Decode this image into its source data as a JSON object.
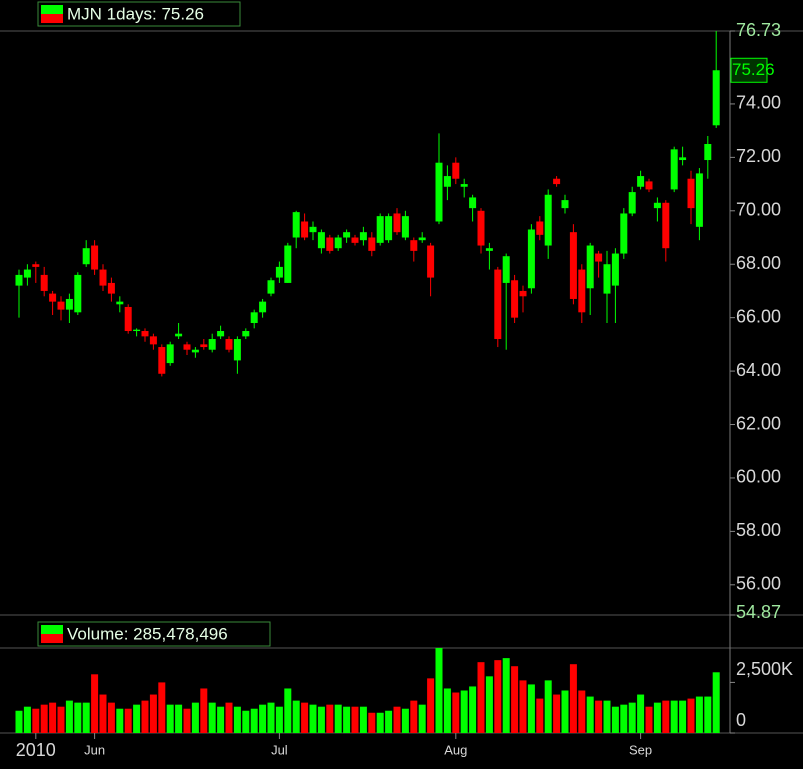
{
  "chart_data": [
    {
      "type": "candlestick",
      "title": "MJN 1days: 75.26",
      "last_price": 75.26,
      "up_color": "#00ff00",
      "down_color": "#ff0000",
      "categories": [
        null,
        null,
        "2010",
        null,
        null,
        null,
        null,
        null,
        null,
        "Jun",
        null,
        null,
        null,
        null,
        null,
        null,
        null,
        null,
        null,
        null,
        null,
        null,
        null,
        null,
        null,
        null,
        null,
        null,
        null,
        null,
        null,
        "Jul",
        null,
        null,
        null,
        null,
        null,
        null,
        null,
        null,
        null,
        null,
        null,
        null,
        null,
        null,
        null,
        null,
        null,
        null,
        null,
        null,
        "Aug",
        null,
        null,
        null,
        null,
        null,
        null,
        null,
        null,
        null,
        null,
        null,
        null,
        null,
        null,
        null,
        null,
        null,
        null,
        null,
        null,
        null,
        "Sep",
        null,
        null,
        null,
        null,
        null,
        null,
        null,
        null,
        null
      ],
      "open": [
        67.2,
        67.5,
        68.0,
        67.6,
        66.9,
        66.6,
        66.3,
        66.2,
        68.0,
        68.7,
        67.8,
        67.3,
        66.5,
        66.4,
        65.5,
        65.5,
        65.3,
        64.9,
        64.3,
        65.3,
        65.0,
        64.7,
        65.0,
        64.8,
        65.3,
        65.2,
        64.4,
        65.3,
        65.8,
        66.2,
        66.9,
        67.5,
        67.3,
        69.0,
        69.6,
        69.2,
        68.6,
        69.0,
        68.6,
        69.0,
        69.0,
        68.9,
        69.0,
        68.8,
        68.9,
        69.9,
        69.0,
        68.9,
        68.9,
        68.7,
        69.6,
        70.9,
        71.8,
        70.9,
        70.1,
        70.0,
        68.5,
        67.8,
        67.3,
        67.4,
        67.0,
        67.1,
        69.6,
        68.7,
        71.2,
        70.1,
        69.2,
        67.8,
        67.1,
        68.4,
        66.9,
        67.2,
        68.4,
        69.9,
        70.9,
        71.1,
        70.1,
        70.3,
        70.8,
        71.9,
        71.2,
        69.4,
        71.9,
        73.2
      ],
      "high": [
        67.8,
        68.0,
        68.1,
        67.9,
        67.0,
        66.8,
        66.9,
        67.7,
        68.9,
        68.9,
        68.0,
        67.5,
        66.8,
        66.5,
        65.6,
        65.6,
        65.4,
        65.0,
        65.1,
        65.8,
        65.1,
        64.9,
        65.2,
        65.4,
        65.7,
        65.3,
        65.3,
        65.6,
        66.3,
        66.7,
        67.5,
        68.1,
        68.8,
        70.0,
        69.9,
        69.6,
        69.3,
        69.1,
        69.1,
        69.3,
        69.1,
        69.4,
        69.2,
        69.9,
        69.9,
        70.1,
        70.0,
        69.0,
        69.2,
        68.8,
        72.9,
        71.7,
        72.0,
        71.2,
        70.6,
        70.1,
        68.8,
        67.9,
        68.4,
        67.6,
        67.2,
        69.5,
        69.8,
        70.8,
        71.3,
        70.6,
        69.5,
        68.0,
        68.8,
        68.5,
        68.5,
        68.6,
        70.1,
        70.9,
        71.5,
        71.2,
        70.5,
        70.4,
        72.4,
        72.4,
        71.5,
        71.6,
        72.8,
        76.73
      ],
      "low": [
        66.0,
        67.2,
        67.3,
        66.8,
        66.1,
        65.9,
        65.8,
        66.1,
        67.9,
        67.6,
        67.0,
        66.6,
        66.2,
        65.4,
        65.3,
        65.1,
        64.8,
        63.8,
        64.2,
        65.2,
        64.6,
        64.5,
        64.8,
        64.7,
        65.2,
        64.7,
        63.9,
        65.2,
        65.6,
        66.0,
        66.8,
        67.3,
        67.3,
        68.6,
        68.9,
        68.9,
        68.4,
        68.4,
        68.5,
        68.8,
        68.7,
        68.7,
        68.3,
        68.7,
        68.8,
        69.1,
        68.9,
        68.1,
        68.8,
        66.8,
        69.5,
        70.4,
        71.0,
        70.5,
        69.6,
        68.4,
        67.8,
        64.9,
        64.8,
        65.8,
        66.2,
        66.9,
        68.9,
        68.2,
        70.9,
        69.9,
        66.5,
        65.8,
        66.1,
        67.5,
        65.8,
        65.8,
        68.2,
        69.8,
        70.8,
        70.7,
        69.6,
        68.1,
        70.7,
        71.7,
        69.5,
        68.9,
        71.2,
        73.1
      ],
      "close": [
        67.6,
        67.8,
        67.9,
        67.0,
        66.6,
        66.3,
        66.7,
        67.6,
        68.6,
        67.8,
        67.2,
        66.9,
        66.6,
        65.5,
        65.55,
        65.3,
        65.0,
        63.9,
        65.0,
        65.4,
        64.8,
        64.8,
        64.9,
        65.2,
        65.5,
        64.8,
        65.2,
        65.5,
        66.2,
        66.6,
        67.4,
        67.9,
        68.7,
        69.95,
        69.0,
        69.4,
        69.2,
        68.5,
        69.0,
        69.2,
        68.8,
        69.2,
        68.5,
        69.8,
        69.8,
        69.2,
        69.8,
        68.5,
        69.0,
        67.5,
        71.8,
        71.3,
        71.2,
        71.0,
        70.5,
        68.7,
        68.6,
        65.2,
        68.3,
        66.0,
        66.8,
        69.3,
        69.1,
        70.6,
        71.0,
        70.4,
        66.7,
        66.2,
        68.7,
        68.1,
        68.0,
        68.4,
        69.9,
        70.7,
        71.3,
        70.8,
        70.3,
        68.6,
        72.3,
        72.0,
        70.1,
        71.4,
        72.5,
        75.26
      ],
      "ylim": [
        54.87,
        76.73
      ],
      "yticks": [
        76.73,
        {
          "value": 74,
          "label": "74.00"
        },
        {
          "value": 72,
          "label": "72.00"
        },
        {
          "value": 70,
          "label": "70.00"
        },
        {
          "value": 68,
          "label": "68.00"
        },
        {
          "value": 66,
          "label": "66.00"
        },
        {
          "value": 64,
          "label": "64.00"
        },
        {
          "value": 62,
          "label": "62.00"
        },
        {
          "value": 60,
          "label": "60.00"
        },
        {
          "value": 58,
          "label": "58.00"
        },
        {
          "value": 56,
          "label": "56.00"
        },
        54.87
      ]
    },
    {
      "type": "bar",
      "title": "Volume: 285,478,496",
      "values": [
        1100000,
        1300000,
        1200000,
        1400000,
        1500000,
        1300000,
        1600000,
        1500000,
        1500000,
        2900000,
        1900000,
        1500000,
        1200000,
        1200000,
        1400000,
        1600000,
        1900000,
        2500000,
        1400000,
        1400000,
        1200000,
        1500000,
        2200000,
        1500000,
        1300000,
        1500000,
        1300000,
        1100000,
        1200000,
        1400000,
        1500000,
        1300000,
        2200000,
        1600000,
        1500000,
        1400000,
        1300000,
        1400000,
        1400000,
        1300000,
        1300000,
        1300000,
        1000000,
        1000000,
        1100000,
        1300000,
        1200000,
        1600000,
        1400000,
        2700000,
        4200000,
        2200000,
        2000000,
        2100000,
        2300000,
        3500000,
        2800000,
        3600000,
        3700000,
        3300000,
        2600000,
        2400000,
        1700000,
        2600000,
        1900000,
        2100000,
        3400000,
        2100000,
        1800000,
        1600000,
        1600000,
        1300000,
        1400000,
        1500000,
        1900000,
        1300000,
        1500000,
        1600000,
        1600000,
        1600000,
        1700000,
        1800000,
        1800000,
        3000000
      ],
      "ylim": [
        0,
        4200000
      ],
      "yticks": [
        0,
        {
          "value": 2500000,
          "label": "2,500K"
        }
      ]
    }
  ]
}
